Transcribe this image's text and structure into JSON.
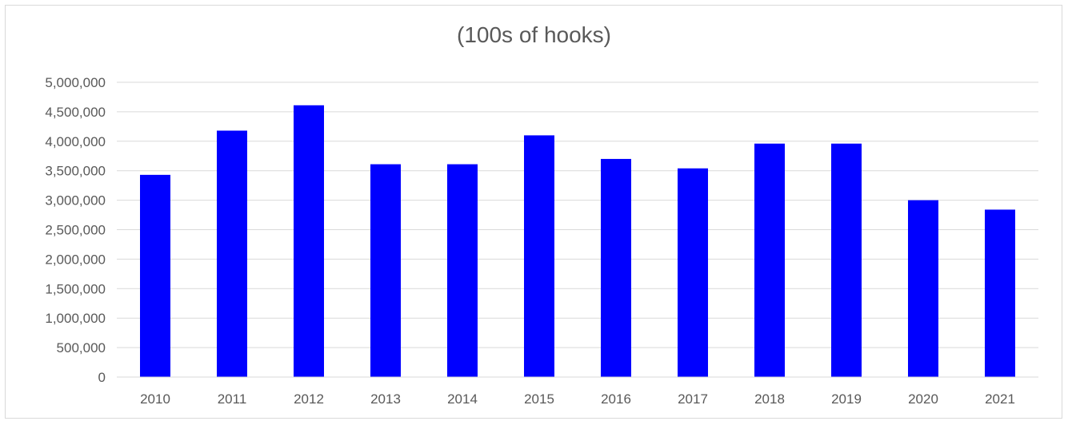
{
  "chart_data": {
    "type": "bar",
    "title": "(100s of hooks)",
    "xlabel": "",
    "ylabel": "",
    "categories": [
      "2010",
      "2011",
      "2012",
      "2013",
      "2014",
      "2015",
      "2016",
      "2017",
      "2018",
      "2019",
      "2020",
      "2021"
    ],
    "values": [
      3430000,
      4180000,
      4610000,
      3610000,
      3610000,
      4100000,
      3700000,
      3540000,
      3960000,
      3960000,
      3000000,
      2840000
    ],
    "ylim": [
      0,
      5000000
    ],
    "yticks": [
      "0",
      "500,000",
      "1,000,000",
      "1,500,000",
      "2,000,000",
      "2,500,000",
      "3,000,000",
      "3,500,000",
      "4,000,000",
      "4,500,000",
      "5,000,000"
    ],
    "ytick_values": [
      0,
      500000,
      1000000,
      1500000,
      2000000,
      2500000,
      3000000,
      3500000,
      4000000,
      4500000,
      5000000
    ],
    "grid": true,
    "legend": "none",
    "bar_color": "#0000ff",
    "gridline_color": "#d9d9d9"
  }
}
